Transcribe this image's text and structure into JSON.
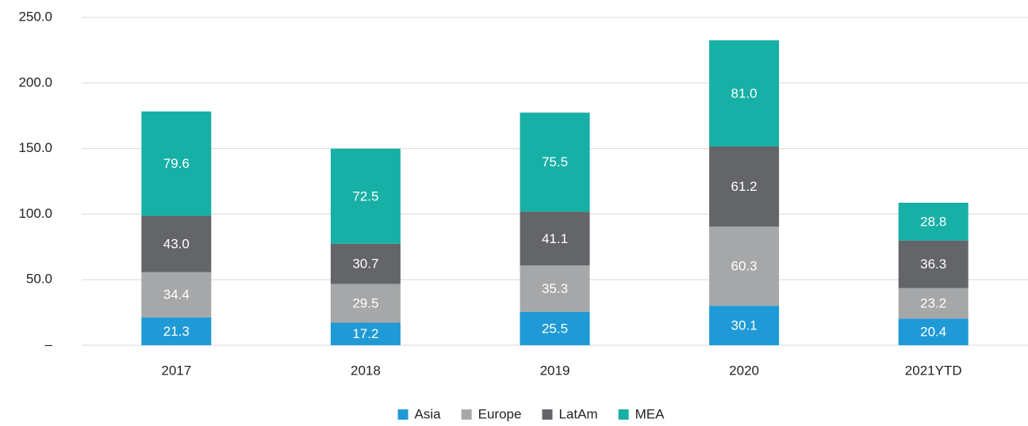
{
  "chart_data": {
    "type": "stacked_bar",
    "categories": [
      "2017",
      "2018",
      "2019",
      "2020",
      "2021YTD"
    ],
    "series": [
      {
        "name": "Asia",
        "color": "#1f9ad6",
        "values": [
          21.3,
          17.2,
          25.5,
          30.1,
          20.4
        ],
        "value_labels": [
          "21.3",
          "17.2",
          "25.5",
          "30.1",
          "20.4"
        ]
      },
      {
        "name": "Europe",
        "color": "#a5a7a8",
        "values": [
          34.4,
          29.5,
          35.3,
          60.3,
          23.2
        ],
        "value_labels": [
          "34.4",
          "29.5",
          "35.3",
          "60.3",
          "23.2"
        ]
      },
      {
        "name": "LatAm",
        "color": "#636569",
        "values": [
          43.0,
          30.7,
          41.1,
          61.2,
          36.3
        ],
        "value_labels": [
          "43.0",
          "30.7",
          "41.1",
          "61.2",
          "36.3"
        ]
      },
      {
        "name": "MEA",
        "color": "#17b0a6",
        "values": [
          79.6,
          72.5,
          75.5,
          81.0,
          28.8
        ],
        "value_labels": [
          "79.6",
          "72.5",
          "75.5",
          "81.0",
          "28.8"
        ]
      }
    ],
    "ylim": [
      0,
      250
    ],
    "yticks": [
      {
        "value": 0,
        "label": "–"
      },
      {
        "value": 50,
        "label": "50.0"
      },
      {
        "value": 100,
        "label": "100.0"
      },
      {
        "value": 150,
        "label": "150.0"
      },
      {
        "value": 200,
        "label": "200.0"
      },
      {
        "value": 250,
        "label": "250.0"
      }
    ],
    "grid": true,
    "legend": "bottom"
  }
}
